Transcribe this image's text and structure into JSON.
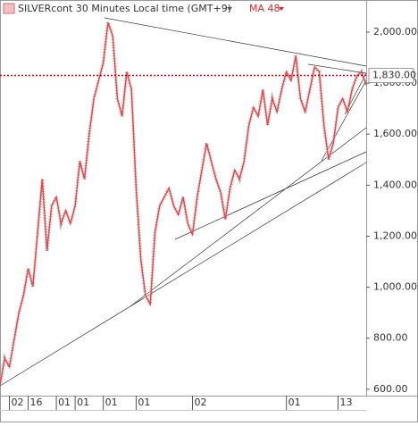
{
  "chart_data": {
    "type": "line",
    "title": "SILVERcont 30 Minutes Local time (GMT+9)",
    "indicator": "MA 48",
    "x": [
      0,
      1,
      2,
      3,
      4,
      5,
      6,
      7,
      8,
      9,
      10,
      11,
      12,
      13,
      14,
      15,
      16,
      17,
      18,
      19,
      20,
      21,
      22,
      23,
      24,
      25,
      26,
      27,
      28,
      29,
      30,
      31,
      32,
      33,
      34,
      35,
      36,
      37,
      38,
      39,
      40,
      41,
      42,
      43,
      44,
      45,
      46,
      47,
      48,
      49,
      50,
      51,
      52,
      53,
      54,
      55,
      56,
      57,
      58,
      59,
      60,
      61,
      62,
      63,
      64,
      65,
      66,
      67,
      68,
      69,
      70,
      71,
      72,
      73,
      74,
      75,
      76,
      77,
      78
    ],
    "series": [
      {
        "name": "SILVERcont",
        "color": "#e8474a",
        "values": [
          617,
          722,
          687,
          793,
          898,
          968,
          1073,
          1003,
          1214,
          1424,
          1143,
          1319,
          1354,
          1249,
          1301,
          1249,
          1319,
          1494,
          1424,
          1600,
          1740,
          1810,
          1880,
          2038,
          1986,
          1740,
          1670,
          1845,
          1775,
          1389,
          1108,
          968,
          933,
          1214,
          1319,
          1354,
          1389,
          1319,
          1284,
          1354,
          1249,
          1207,
          1354,
          1459,
          1565,
          1494,
          1424,
          1371,
          1266,
          1389,
          1459,
          1424,
          1494,
          1635,
          1705,
          1670,
          1775,
          1635,
          1740,
          1687,
          1775,
          1845,
          1810,
          1908,
          1740,
          1687,
          1775,
          1863,
          1845,
          1635,
          1501,
          1565,
          1705,
          1740,
          1687,
          1775,
          1828,
          1845,
          1793
        ]
      }
    ],
    "xlim": [
      0,
      78
    ],
    "xticks": [
      {
        "value": 2,
        "label": "02"
      },
      {
        "value": 6,
        "label": "16"
      },
      {
        "value": 12,
        "label": "01"
      },
      {
        "value": 16,
        "label": "01"
      },
      {
        "value": 22,
        "label": "01"
      },
      {
        "value": 29,
        "label": "01"
      },
      {
        "value": 41,
        "label": "02"
      },
      {
        "value": 61,
        "label": "01"
      },
      {
        "value": 72,
        "label": "13"
      }
    ],
    "ylim": [
      575,
      2126
    ],
    "yticks": [
      {
        "value": 600,
        "label": "600.00"
      },
      {
        "value": 800,
        "label": "800.00"
      },
      {
        "value": 1000,
        "label": "1,000.00"
      },
      {
        "value": 1200,
        "label": "1,200.00"
      },
      {
        "value": 1400,
        "label": "1,400.00"
      },
      {
        "value": 1600,
        "label": "1,600.00"
      },
      {
        "value": 1800,
        "label": "1,800.00"
      },
      {
        "value": 2000,
        "label": "2,000.00"
      }
    ],
    "price_line": 1830,
    "price_line_label": "1,830.00",
    "price_line_color": "#d0021b"
  }
}
